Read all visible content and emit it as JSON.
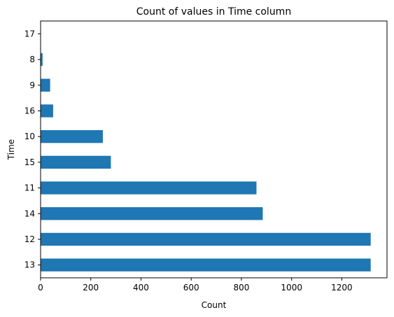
{
  "chart_data": {
    "type": "bar",
    "orientation": "horizontal",
    "title": "Count of values in Time column",
    "xlabel": "Count",
    "ylabel": "Time",
    "categories": [
      "13",
      "12",
      "14",
      "11",
      "15",
      "10",
      "16",
      "9",
      "8",
      "17"
    ],
    "values": [
      1315,
      1315,
      885,
      860,
      280,
      248,
      50,
      38,
      8,
      0
    ],
    "xlim": [
      0,
      1380
    ],
    "xticks": [
      0,
      200,
      400,
      600,
      800,
      1000,
      1200
    ],
    "grid": false,
    "bar_color": "#1f77b4"
  }
}
